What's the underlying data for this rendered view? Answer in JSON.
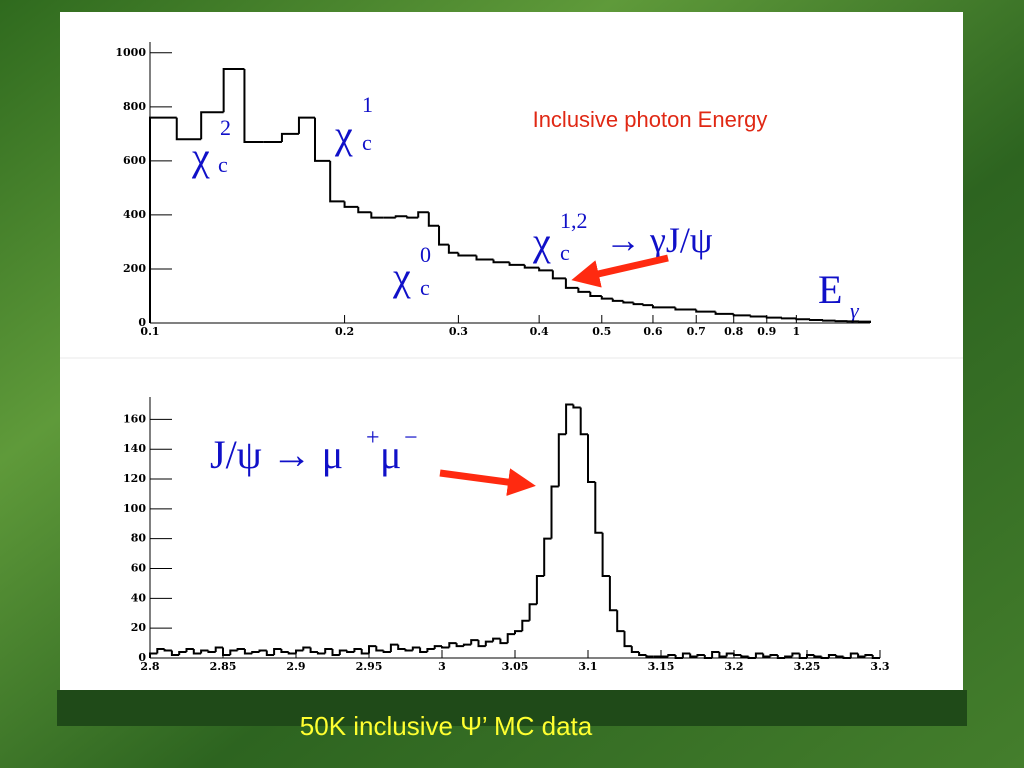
{
  "chart_data": [
    {
      "type": "histogram",
      "title": "Inclusive photon Energy",
      "xscale": "log",
      "color": "#000000",
      "bins": [
        0.1,
        0.11,
        0.12,
        0.13,
        0.14,
        0.15,
        0.16,
        0.17,
        0.18,
        0.19,
        0.2,
        0.21,
        0.22,
        0.23,
        0.24,
        0.25,
        0.26,
        0.27,
        0.28,
        0.29,
        0.3,
        0.32,
        0.34,
        0.36,
        0.38,
        0.4,
        0.42,
        0.44,
        0.46,
        0.48,
        0.5,
        0.52,
        0.54,
        0.56,
        0.58,
        0.6,
        0.65,
        0.7,
        0.75,
        0.8,
        0.85,
        0.9,
        0.95,
        1,
        1.05,
        1.1,
        1.15,
        1.2,
        1.25,
        1.3
      ],
      "values": [
        760,
        680,
        780,
        940,
        670,
        670,
        700,
        760,
        600,
        450,
        430,
        410,
        390,
        390,
        395,
        390,
        410,
        360,
        290,
        260,
        250,
        235,
        225,
        215,
        205,
        195,
        165,
        130,
        115,
        100,
        90,
        82,
        76,
        70,
        66,
        58,
        50,
        42,
        34,
        28,
        24,
        20,
        17,
        14,
        11,
        9,
        7,
        6,
        5
      ],
      "xlim": [
        0.1,
        1.3
      ],
      "ylim": [
        0,
        1040
      ],
      "xticks": [
        0.1,
        0.2,
        0.3,
        0.4,
        0.5,
        0.6,
        0.7,
        0.8,
        0.9,
        1
      ],
      "yticks": [
        0,
        200,
        400,
        600,
        800,
        1000
      ],
      "annotations": [
        {
          "base": "χ",
          "sub": "c",
          "sup": "2"
        },
        {
          "base": "χ",
          "sub": "c",
          "sup": "1"
        },
        {
          "base": "χ",
          "sub": "c",
          "sup": "0"
        },
        {
          "base": "χ",
          "sub": "c",
          "sup": "1,2",
          "rest": "→ γJ/ψ"
        },
        {
          "base": "E",
          "sub": "γ"
        }
      ]
    },
    {
      "type": "histogram",
      "color": "#000000",
      "bins": [
        2.8,
        2.805,
        2.81,
        2.815,
        2.82,
        2.825,
        2.83,
        2.835,
        2.84,
        2.845,
        2.85,
        2.855,
        2.86,
        2.865,
        2.87,
        2.875,
        2.88,
        2.885,
        2.89,
        2.895,
        2.9,
        2.905,
        2.91,
        2.915,
        2.92,
        2.925,
        2.93,
        2.935,
        2.94,
        2.945,
        2.95,
        2.955,
        2.96,
        2.965,
        2.97,
        2.975,
        2.98,
        2.985,
        2.99,
        2.995,
        3,
        3.005,
        3.01,
        3.015,
        3.02,
        3.025,
        3.03,
        3.035,
        3.04,
        3.045,
        3.05,
        3.055,
        3.06,
        3.065,
        3.07,
        3.075,
        3.08,
        3.085,
        3.09,
        3.095,
        3.1,
        3.105,
        3.11,
        3.115,
        3.12,
        3.125,
        3.13,
        3.135,
        3.14,
        3.145,
        3.15,
        3.155,
        3.16,
        3.165,
        3.17,
        3.175,
        3.18,
        3.185,
        3.19,
        3.195,
        3.2,
        3.205,
        3.21,
        3.215,
        3.22,
        3.225,
        3.23,
        3.235,
        3.24,
        3.245,
        3.25,
        3.255,
        3.26,
        3.265,
        3.27,
        3.275,
        3.28,
        3.285,
        3.29,
        3.295,
        3.3
      ],
      "values": [
        3,
        6,
        5,
        2,
        4,
        6,
        3,
        5,
        4,
        7,
        2,
        5,
        6,
        3,
        4,
        5,
        2,
        6,
        4,
        3,
        5,
        7,
        4,
        3,
        6,
        2,
        5,
        4,
        6,
        3,
        8,
        5,
        4,
        9,
        6,
        5,
        7,
        4,
        6,
        8,
        7,
        10,
        8,
        9,
        12,
        8,
        11,
        13,
        10,
        16,
        18,
        25,
        36,
        55,
        80,
        115,
        150,
        170,
        168,
        150,
        118,
        84,
        55,
        32,
        18,
        8,
        4,
        2,
        1,
        1,
        1,
        2,
        0,
        3,
        1,
        2,
        0,
        4,
        1,
        3,
        2,
        1,
        0,
        3,
        1,
        2,
        0,
        1,
        3,
        0,
        2,
        1,
        0,
        2,
        1,
        0,
        3,
        1,
        2,
        0
      ],
      "xlim": [
        2.8,
        3.3
      ],
      "ylim": [
        0,
        175
      ],
      "xticks": [
        2.8,
        2.85,
        2.9,
        2.95,
        3,
        3.05,
        3.1,
        3.15,
        3.2,
        3.25,
        3.3
      ],
      "yticks": [
        0,
        20,
        40,
        60,
        80,
        100,
        120,
        140,
        160
      ],
      "annotations": [
        {
          "base": "J/ψ → μ",
          "sup": "+",
          "base2": "μ",
          "sup2": "−"
        }
      ]
    }
  ],
  "caption": "50K inclusive Ψ’ MC data"
}
